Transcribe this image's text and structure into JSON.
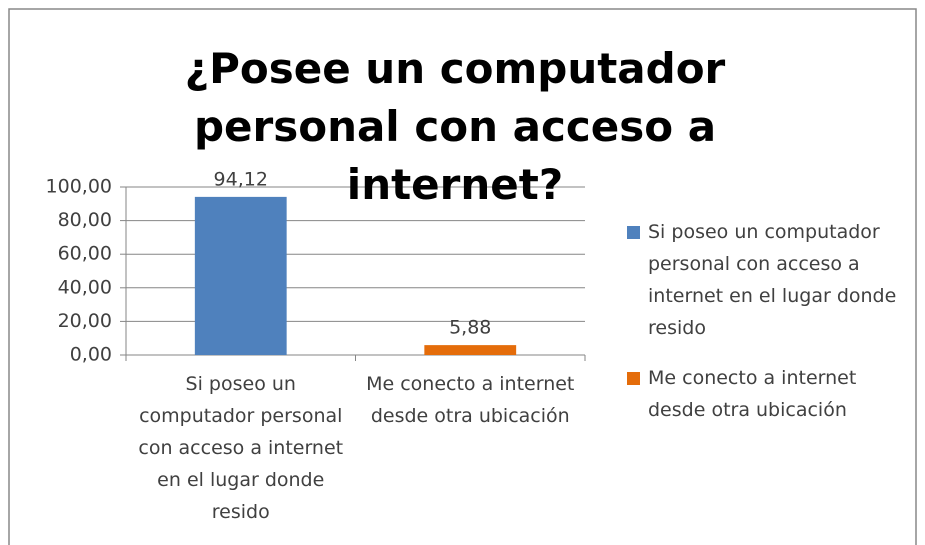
{
  "chart_data": {
    "type": "bar",
    "title": "¿Posee un computador personal con acceso a internet?",
    "categories": [
      "Si poseo un computador personal con acceso a internet en el lugar donde resido",
      "Me conecto a internet desde otra ubicación"
    ],
    "values": [
      94.12,
      5.88
    ],
    "value_labels": [
      "94,12",
      "5,88"
    ],
    "colors": [
      "#4f81bd",
      "#e46c0a"
    ],
    "ylim": [
      0,
      100
    ],
    "yticks": [
      {
        "value": 0,
        "label": "0,00"
      },
      {
        "value": 20,
        "label": "20,00"
      },
      {
        "value": 40,
        "label": "40,00"
      },
      {
        "value": 60,
        "label": "60,00"
      },
      {
        "value": 80,
        "label": "80,00"
      },
      {
        "value": 100,
        "label": "100,00"
      }
    ],
    "grid": true,
    "legend": "right"
  }
}
